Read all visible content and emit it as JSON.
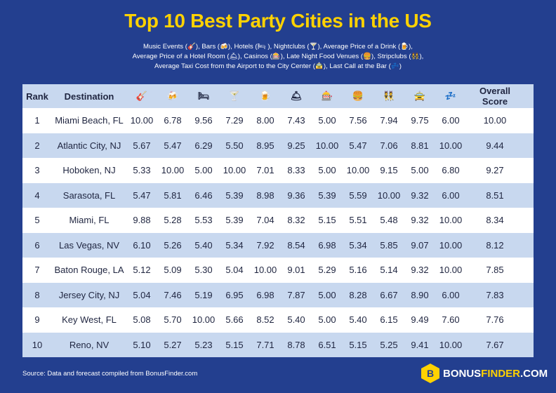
{
  "title": "Top 10 Best Party Cities in the US",
  "legend": {
    "line1": "Music Events (🎸), Bars (🍻), Hotels (🛏 ), Nightclubs (🍸), Average Price of a Drink (🍺),",
    "line2": "Average Price of a Hotel Room (🛎), Casinos (🎰), Late Night Food Venues (🍔), Stripclubs (👯),",
    "line3": "Average Taxi Cost from the Airport to the City Center (🚖), Last Call at the Bar (💤)"
  },
  "table": {
    "headers": [
      "Rank",
      "Destination",
      "🎸",
      "🍻",
      "🛏",
      "🍸",
      "🍺",
      "🛎",
      "🎰",
      "🍔",
      "👯",
      "🚖",
      "💤",
      "Overall Score"
    ],
    "header_icons": [
      "guitar-icon",
      "beers-icon",
      "bed-icon",
      "cocktail-icon",
      "beer-mug-icon",
      "bellhop-bell-icon",
      "casino-icon",
      "burger-icon",
      "dancers-icon",
      "taxi-icon",
      "zzz-icon"
    ],
    "rows": [
      [
        "1",
        "Miami Beach, FL",
        "10.00",
        "6.78",
        "9.56",
        "7.29",
        "8.00",
        "7.43",
        "5.00",
        "7.56",
        "7.94",
        "9.75",
        "6.00",
        "10.00"
      ],
      [
        "2",
        "Atlantic City, NJ",
        "5.67",
        "5.47",
        "6.29",
        "5.50",
        "8.95",
        "9.25",
        "10.00",
        "5.47",
        "7.06",
        "8.81",
        "10.00",
        "9.44"
      ],
      [
        "3",
        "Hoboken, NJ",
        "5.33",
        "10.00",
        "5.00",
        "10.00",
        "7.01",
        "8.33",
        "5.00",
        "10.00",
        "9.15",
        "5.00",
        "6.80",
        "9.27"
      ],
      [
        "4",
        "Sarasota, FL",
        "5.47",
        "5.81",
        "6.46",
        "5.39",
        "8.98",
        "9.36",
        "5.39",
        "5.59",
        "10.00",
        "9.32",
        "6.00",
        "8.51"
      ],
      [
        "5",
        "Miami, FL",
        "9.88",
        "5.28",
        "5.53",
        "5.39",
        "7.04",
        "8.32",
        "5.15",
        "5.51",
        "5.48",
        "9.32",
        "10.00",
        "8.34"
      ],
      [
        "6",
        "Las Vegas, NV",
        "6.10",
        "5.26",
        "5.40",
        "5.34",
        "7.92",
        "8.54",
        "6.98",
        "5.34",
        "5.85",
        "9.07",
        "10.00",
        "8.12"
      ],
      [
        "7",
        "Baton Rouge, LA",
        "5.12",
        "5.09",
        "5.30",
        "5.04",
        "10.00",
        "9.01",
        "5.29",
        "5.16",
        "5.14",
        "9.32",
        "10.00",
        "7.85"
      ],
      [
        "8",
        "Jersey City, NJ",
        "5.04",
        "7.46",
        "5.19",
        "6.95",
        "6.98",
        "7.87",
        "5.00",
        "8.28",
        "6.67",
        "8.90",
        "6.00",
        "7.83"
      ],
      [
        "9",
        "Key West, FL",
        "5.08",
        "5.70",
        "10.00",
        "5.66",
        "8.52",
        "5.40",
        "5.00",
        "5.40",
        "6.15",
        "9.49",
        "7.60",
        "7.76"
      ],
      [
        "10",
        "Reno, NV",
        "5.10",
        "5.27",
        "5.23",
        "5.15",
        "7.71",
        "8.78",
        "6.51",
        "5.15",
        "5.25",
        "9.41",
        "10.00",
        "7.67"
      ]
    ]
  },
  "source": "Source: Data and forecast compiled from BonusFinder.com",
  "logo": {
    "mark": "B",
    "part1": "BONUS",
    "part2": "FINDER",
    "part3": ".COM"
  },
  "colors": {
    "background": "#233f8f",
    "title": "#ffd200",
    "row_alt": "#c8d8ef"
  }
}
